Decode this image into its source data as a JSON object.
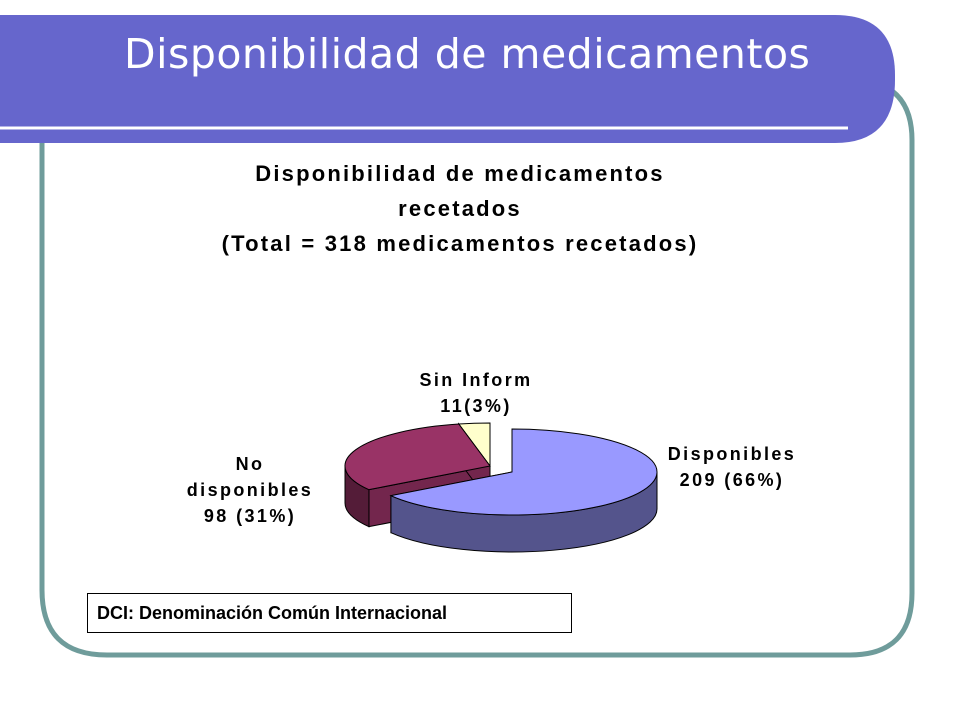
{
  "slide": {
    "title": "Disponibilidad de medicamentos",
    "footnote": "DCI: Denominación Común Internacional"
  },
  "colors": {
    "header": "#6666CC",
    "frame": "#6F9C9B",
    "disponibles": "#9999FF",
    "no_disponibles": "#993366",
    "sin_inform": "#FFFFCC"
  },
  "chart_data": {
    "type": "pie",
    "title_lines": [
      "Disponibilidad de medicamentos",
      "recetados",
      "(Total = 318 medicamentos recetados)"
    ],
    "categories": [
      "Disponibles",
      "No disponibles",
      "Sin Inform"
    ],
    "values": [
      209,
      98,
      11
    ],
    "percents": [
      66,
      31,
      3
    ],
    "labels": [
      [
        "Disponibles",
        "209 (66%)"
      ],
      [
        "No",
        "disponibles",
        "98 (31%)"
      ],
      [
        "Sin Inform",
        "11(3%)"
      ]
    ]
  }
}
